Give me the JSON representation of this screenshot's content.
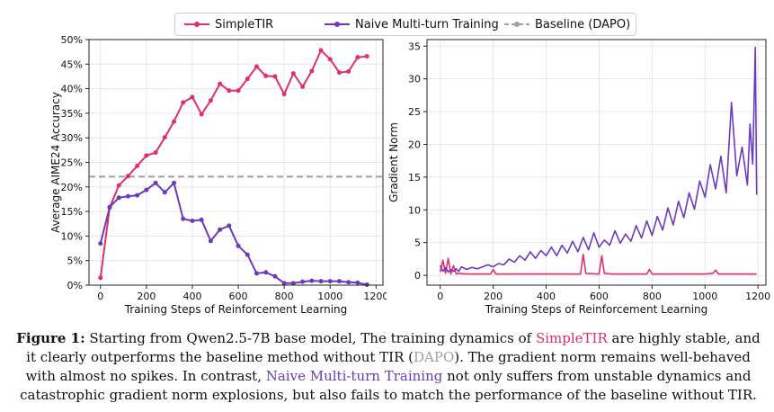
{
  "legend": {
    "items": [
      {
        "label": "SimpleTIR",
        "color": "#e0306a",
        "style": "line-marker"
      },
      {
        "label": "Naive Multi-turn Training",
        "color": "#6a3cbd",
        "style": "line-marker"
      },
      {
        "label": "Baseline (DAPO)",
        "color": "#a0a0a0",
        "style": "dashed"
      }
    ]
  },
  "chart_data": [
    {
      "type": "line",
      "title": "",
      "xlabel": "Training Steps of Reinforcement Learning",
      "ylabel": "Average AIME24 Accuracy",
      "xlim": [
        -50,
        1230
      ],
      "ylim": [
        0,
        50
      ],
      "xticks": [
        0,
        200,
        400,
        600,
        800,
        1000,
        1200
      ],
      "yticks": [
        0,
        5,
        10,
        15,
        20,
        25,
        30,
        35,
        40,
        45,
        50
      ],
      "ytick_labels": [
        "0%",
        "5%",
        "10%",
        "15%",
        "20%",
        "25%",
        "30%",
        "35%",
        "40%",
        "45%",
        "50%"
      ],
      "grid": true,
      "hlines": [
        {
          "name": "Baseline (DAPO)",
          "y": 22.1,
          "color": "#a0a0a0",
          "style": "dashed"
        }
      ],
      "series": [
        {
          "name": "SimpleTIR",
          "color": "#e0306a",
          "x": [
            0,
            40,
            80,
            120,
            160,
            200,
            240,
            280,
            320,
            360,
            400,
            440,
            480,
            520,
            560,
            600,
            640,
            680,
            720,
            760,
            800,
            840,
            880,
            920,
            960,
            1000,
            1040,
            1080,
            1120,
            1160
          ],
          "y": [
            1.5,
            15.8,
            20.3,
            22.2,
            24.3,
            26.4,
            27.0,
            30.1,
            33.3,
            37.2,
            38.3,
            34.8,
            37.6,
            41.0,
            39.6,
            39.6,
            42.0,
            44.5,
            42.6,
            42.5,
            38.9,
            43.1,
            40.4,
            43.6,
            47.8,
            46.0,
            43.3,
            43.5,
            46.4,
            46.6
          ]
        },
        {
          "name": "Naive Multi-turn Training",
          "color": "#6a3cbd",
          "x": [
            0,
            40,
            80,
            120,
            160,
            200,
            240,
            280,
            320,
            360,
            400,
            440,
            480,
            520,
            560,
            600,
            640,
            680,
            720,
            760,
            800,
            840,
            880,
            920,
            960,
            1000,
            1040,
            1080,
            1120,
            1160
          ],
          "y": [
            8.5,
            15.9,
            17.8,
            18.1,
            18.3,
            19.4,
            20.8,
            18.9,
            20.8,
            13.5,
            13.1,
            13.3,
            9.0,
            11.3,
            12.1,
            8.0,
            6.2,
            2.4,
            2.6,
            1.8,
            0.4,
            0.4,
            0.7,
            0.9,
            0.8,
            0.8,
            0.8,
            0.6,
            0.5,
            0.1
          ]
        }
      ]
    },
    {
      "type": "line",
      "title": "",
      "xlabel": "Training Steps of Reinforcement Learning",
      "ylabel": "Gradient Norm",
      "xlim": [
        -50,
        1230
      ],
      "ylim": [
        -1.5,
        36
      ],
      "xticks": [
        0,
        200,
        400,
        600,
        800,
        1000,
        1200
      ],
      "yticks": [
        0,
        5,
        10,
        15,
        20,
        25,
        30,
        35
      ],
      "grid": true,
      "series": [
        {
          "name": "SimpleTIR",
          "color": "#e0306a",
          "x": [
            0,
            10,
            20,
            30,
            40,
            50,
            60,
            70,
            100,
            150,
            190,
            200,
            210,
            250,
            300,
            350,
            400,
            450,
            500,
            530,
            540,
            550,
            600,
            610,
            620,
            650,
            700,
            780,
            790,
            800,
            850,
            900,
            950,
            1000,
            1030,
            1040,
            1050,
            1100,
            1150,
            1195
          ],
          "y": [
            0.5,
            2.3,
            0.3,
            2.6,
            0.2,
            1.5,
            0.2,
            0.3,
            0.2,
            0.2,
            0.2,
            0.9,
            0.2,
            0.2,
            0.2,
            0.2,
            0.2,
            0.2,
            0.2,
            0.2,
            3.2,
            0.3,
            0.2,
            3.0,
            0.3,
            0.2,
            0.2,
            0.2,
            0.9,
            0.2,
            0.2,
            0.2,
            0.2,
            0.2,
            0.3,
            0.8,
            0.2,
            0.2,
            0.2,
            0.2
          ]
        },
        {
          "name": "Naive Multi-turn Training",
          "color": "#6a3cbd",
          "x": [
            0,
            10,
            20,
            30,
            40,
            50,
            60,
            70,
            80,
            100,
            120,
            140,
            160,
            180,
            200,
            220,
            240,
            260,
            280,
            300,
            320,
            340,
            360,
            380,
            400,
            420,
            440,
            460,
            480,
            500,
            520,
            540,
            560,
            580,
            600,
            620,
            640,
            660,
            680,
            700,
            720,
            740,
            760,
            780,
            800,
            820,
            840,
            860,
            880,
            900,
            920,
            940,
            960,
            980,
            1000,
            1020,
            1040,
            1060,
            1080,
            1100,
            1120,
            1140,
            1160,
            1170,
            1180,
            1190,
            1195
          ],
          "y": [
            1.5,
            0.6,
            1.2,
            0.5,
            0.9,
            0.6,
            1.0,
            0.6,
            1.3,
            0.9,
            1.2,
            1.0,
            1.3,
            1.6,
            1.3,
            1.8,
            1.6,
            2.5,
            2.0,
            3.0,
            2.3,
            3.6,
            2.6,
            3.8,
            3.0,
            4.3,
            3.0,
            4.6,
            3.4,
            5.2,
            3.6,
            5.8,
            3.9,
            6.5,
            4.3,
            5.4,
            4.6,
            6.8,
            4.9,
            6.3,
            5.2,
            7.6,
            5.7,
            8.3,
            6.1,
            9.0,
            6.9,
            10.3,
            7.7,
            11.3,
            8.8,
            12.6,
            10.1,
            14.4,
            11.9,
            16.9,
            13.2,
            18.2,
            12.6,
            26.4,
            15.2,
            19.6,
            13.8,
            23.1,
            17.0,
            34.8,
            12.3
          ]
        }
      ]
    }
  ],
  "caption": {
    "label": "Figure 1:",
    "part1": " Starting from Qwen2.5-7B base model, The training dynamics of ",
    "simpletir": "SimpleTIR",
    "part2": " are highly stable, and it clearly outperforms the baseline method without TIR (",
    "dapo": "DAPO",
    "part3": "). The gradient norm remains well-behaved with almost no spikes. In contrast, ",
    "naive": "Naive Multi-turn Training",
    "part4": " not only suffers from unstable dynamics and catastrophic gradient norm explosions, but also fails to match the performance of the baseline without TIR."
  }
}
